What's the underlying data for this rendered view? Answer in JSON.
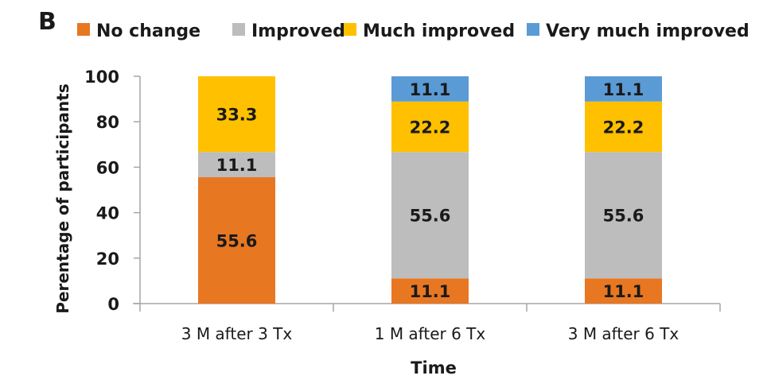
{
  "panel_label": "B",
  "chart_data": {
    "type": "bar",
    "stacked": true,
    "title": "",
    "xlabel": "Time",
    "ylabel": "Perentage of participants",
    "ylim": [
      0,
      100
    ],
    "yticks": [
      0,
      20,
      40,
      60,
      80,
      100
    ],
    "categories": [
      "3 M after 3 Tx",
      "1 M after 6 Tx",
      "3 M after 6 Tx"
    ],
    "legend_position": "top",
    "series": [
      {
        "name": "No change",
        "color": "#E87722",
        "values": [
          55.6,
          11.1,
          11.1
        ],
        "labels": [
          "55.6",
          "11.1",
          "11.1"
        ]
      },
      {
        "name": "Improved",
        "color": "#BDBDBD",
        "values": [
          11.1,
          55.6,
          55.6
        ],
        "labels": [
          "11.1",
          "55.6",
          "55.6"
        ]
      },
      {
        "name": "Much improved",
        "color": "#FFC000",
        "values": [
          33.3,
          22.2,
          22.2
        ],
        "labels": [
          "33.3",
          "22.2",
          "22.2"
        ]
      },
      {
        "name": "Very much improved",
        "color": "#5B9BD5",
        "values": [
          0,
          11.1,
          11.1
        ],
        "labels": [
          "",
          "11.1",
          "11.1"
        ]
      }
    ]
  }
}
